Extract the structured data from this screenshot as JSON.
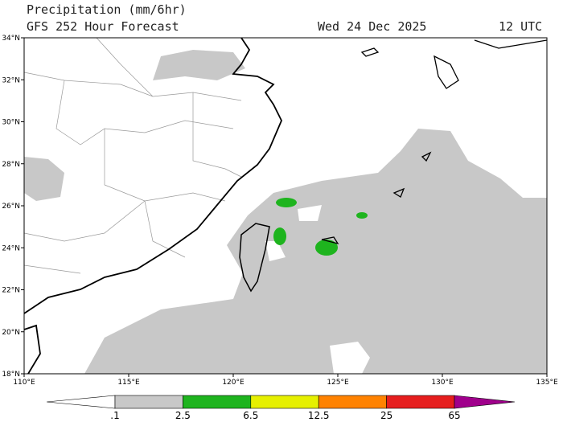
{
  "header": {
    "title": "Precipitation (mm/6hr)",
    "model": "GFS 252 Hour Forecast",
    "date": "Wed 24 Dec 2025",
    "time": "12 UTC"
  },
  "map": {
    "lat_labels": [
      "34°N",
      "32°N",
      "30°N",
      "28°N",
      "26°N",
      "24°N",
      "22°N",
      "20°N",
      "18°N"
    ],
    "lon_labels": [
      "110°E",
      "115°E",
      "120°E",
      "125°E",
      "130°E",
      "135°E"
    ]
  },
  "colorbar": {
    "labels": [
      ".1",
      "2.5",
      "6.5",
      "12.5",
      "25",
      "65"
    ],
    "colors": [
      "#ffffff",
      "#c8c8c8",
      "#1eb41e",
      "#e6f000",
      "#ff8200",
      "#e61e1e",
      "#a0008c"
    ]
  }
}
